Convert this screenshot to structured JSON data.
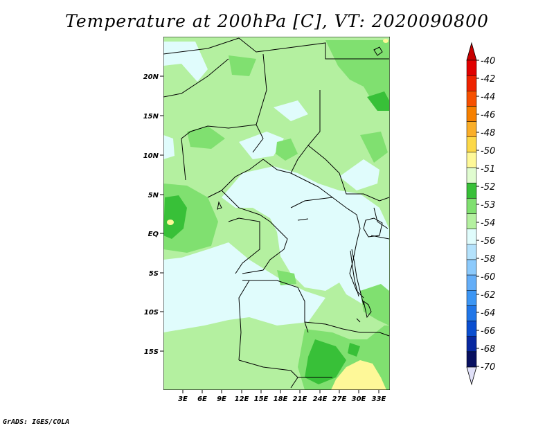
{
  "title": "Temperature at 200hPa [C], VT: 2020090800",
  "credit": "GrADS: IGES/COLA",
  "map": {
    "lat_labels": [
      "20N",
      "15N",
      "10N",
      "5N",
      "EQ",
      "5S",
      "10S",
      "15S"
    ],
    "lon_labels": [
      "3E",
      "6E",
      "9E",
      "12E",
      "15E",
      "18E",
      "21E",
      "24E",
      "27E",
      "30E",
      "33E"
    ],
    "dominant_fill": "#b4f0a0"
  },
  "colorbar": {
    "labels": [
      "-40",
      "-42",
      "-44",
      "-46",
      "-48",
      "-50",
      "-51",
      "-52",
      "-53",
      "-54",
      "-56",
      "-58",
      "-60",
      "-62",
      "-64",
      "-66",
      "-68",
      "-70"
    ],
    "colors": [
      "#e00000",
      "#ee2200",
      "#f65000",
      "#f68000",
      "#faae28",
      "#fcd848",
      "#fef898",
      "#e0fcd0",
      "#38c038",
      "#80e070",
      "#b4f0a0",
      "#e0fcfc",
      "#b4e2fc",
      "#8ccafc",
      "#64aef8",
      "#3c96f4",
      "#2076e8",
      "#0a4ed0",
      "#0828a0",
      "#081060"
    ],
    "over_color": "#c80000",
    "under_color": "#e0e0f8"
  }
}
